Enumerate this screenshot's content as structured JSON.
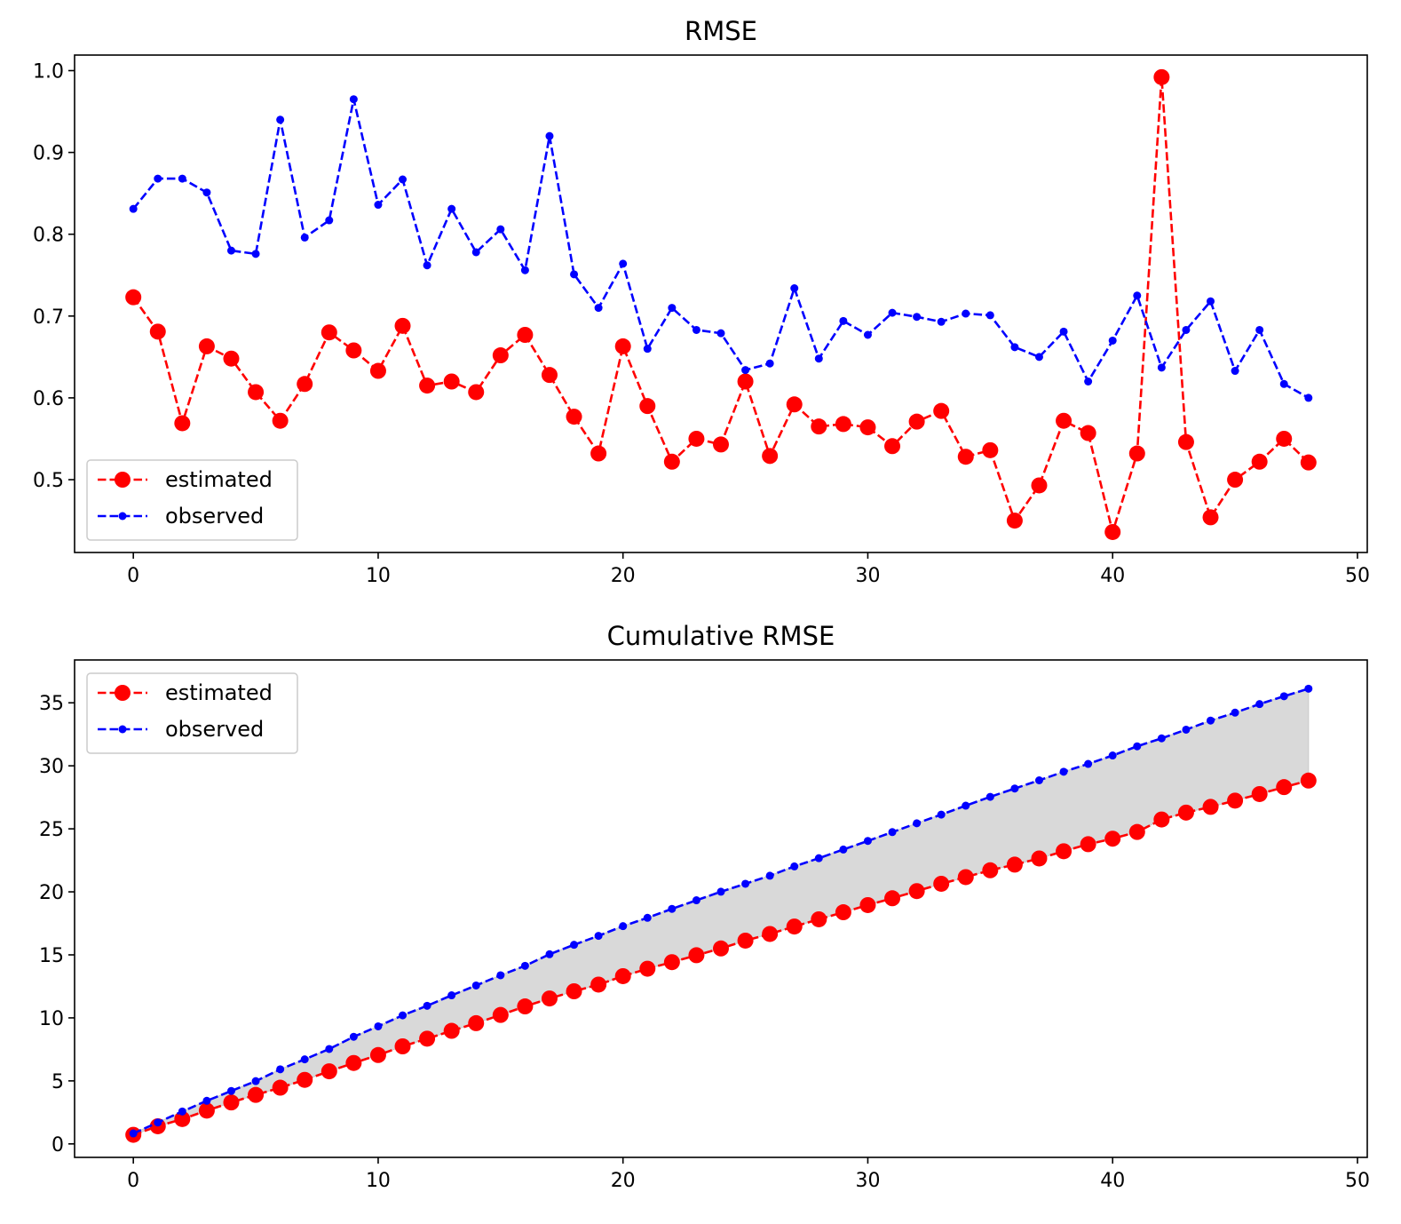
{
  "colors": {
    "estimated": "#ff0000",
    "observed": "#0000ff",
    "fill": "#d9d9d9"
  },
  "chart_data": [
    {
      "type": "line",
      "title": "RMSE",
      "xlim": [
        -2.4,
        50.4
      ],
      "ylim": [
        0.411,
        1.019
      ],
      "xticks": [
        0,
        10,
        20,
        30,
        40,
        50
      ],
      "yticks": [
        0.5,
        0.6,
        0.7,
        0.8,
        0.9,
        1.0
      ],
      "ytick_labels": [
        "0.5",
        "0.6",
        "0.7",
        "0.8",
        "0.9",
        "1.0"
      ],
      "legend": "lower left",
      "grid": false,
      "series": [
        {
          "name": "estimated",
          "marker": "big-dot",
          "values": [
            0.723,
            0.681,
            0.569,
            0.663,
            0.648,
            0.607,
            0.572,
            0.617,
            0.68,
            0.658,
            0.633,
            0.688,
            0.615,
            0.62,
            0.607,
            0.652,
            0.677,
            0.628,
            0.577,
            0.532,
            0.663,
            0.59,
            0.522,
            0.55,
            0.543,
            0.62,
            0.529,
            0.592,
            0.565,
            0.568,
            0.564,
            0.541,
            0.571,
            0.584,
            0.528,
            0.536,
            0.45,
            0.493,
            0.572,
            0.557,
            0.436,
            0.532,
            0.992,
            0.546,
            0.454,
            0.5,
            0.522,
            0.55,
            0.521
          ]
        },
        {
          "name": "observed",
          "marker": "small-dot",
          "values": [
            0.831,
            0.868,
            0.868,
            0.851,
            0.78,
            0.776,
            0.94,
            0.796,
            0.817,
            0.965,
            0.836,
            0.867,
            0.762,
            0.831,
            0.778,
            0.806,
            0.756,
            0.92,
            0.751,
            0.71,
            0.764,
            0.66,
            0.71,
            0.683,
            0.679,
            0.634,
            0.642,
            0.734,
            0.648,
            0.694,
            0.677,
            0.704,
            0.699,
            0.693,
            0.703,
            0.701,
            0.662,
            0.65,
            0.681,
            0.62,
            0.67,
            0.725,
            0.637,
            0.683,
            0.718,
            0.633,
            0.683,
            0.617,
            0.6
          ]
        }
      ]
    },
    {
      "type": "line",
      "title": "Cumulative RMSE",
      "xlim": [
        -2.4,
        50.4
      ],
      "ylim": [
        -1.07,
        38.4
      ],
      "xticks": [
        0,
        10,
        20,
        30,
        40,
        50
      ],
      "yticks": [
        0,
        5,
        10,
        15,
        20,
        25,
        30,
        35
      ],
      "legend": "upper left",
      "grid": false,
      "fill_between": true,
      "series": [
        {
          "name": "estimated",
          "marker": "big-dot",
          "values": [
            0.72,
            1.4,
            1.97,
            2.64,
            3.29,
            3.89,
            4.46,
            5.08,
            5.76,
            6.42,
            7.05,
            7.74,
            8.35,
            8.97,
            9.58,
            10.23,
            10.91,
            11.54,
            12.11,
            12.64,
            13.31,
            13.9,
            14.42,
            14.97,
            15.51,
            16.13,
            16.66,
            17.25,
            17.82,
            18.38,
            18.95,
            19.49,
            20.06,
            20.64,
            21.17,
            21.71,
            22.16,
            22.65,
            23.22,
            23.78,
            24.22,
            24.75,
            25.74,
            26.29,
            26.74,
            27.24,
            27.76,
            28.31,
            28.83
          ]
        },
        {
          "name": "observed",
          "marker": "small-dot",
          "values": [
            0.83,
            1.7,
            2.57,
            3.42,
            4.2,
            4.98,
            5.92,
            6.71,
            7.53,
            8.5,
            9.33,
            10.2,
            10.96,
            11.79,
            12.57,
            13.38,
            14.13,
            15.05,
            15.8,
            16.51,
            17.28,
            17.94,
            18.65,
            19.33,
            20.01,
            20.64,
            21.28,
            22.02,
            22.67,
            23.36,
            24.04,
            24.74,
            25.44,
            26.13,
            26.84,
            27.54,
            28.2,
            28.85,
            29.53,
            30.15,
            30.82,
            31.55,
            32.18,
            32.87,
            33.59,
            34.22,
            34.9,
            35.52,
            36.12
          ]
        }
      ]
    }
  ]
}
